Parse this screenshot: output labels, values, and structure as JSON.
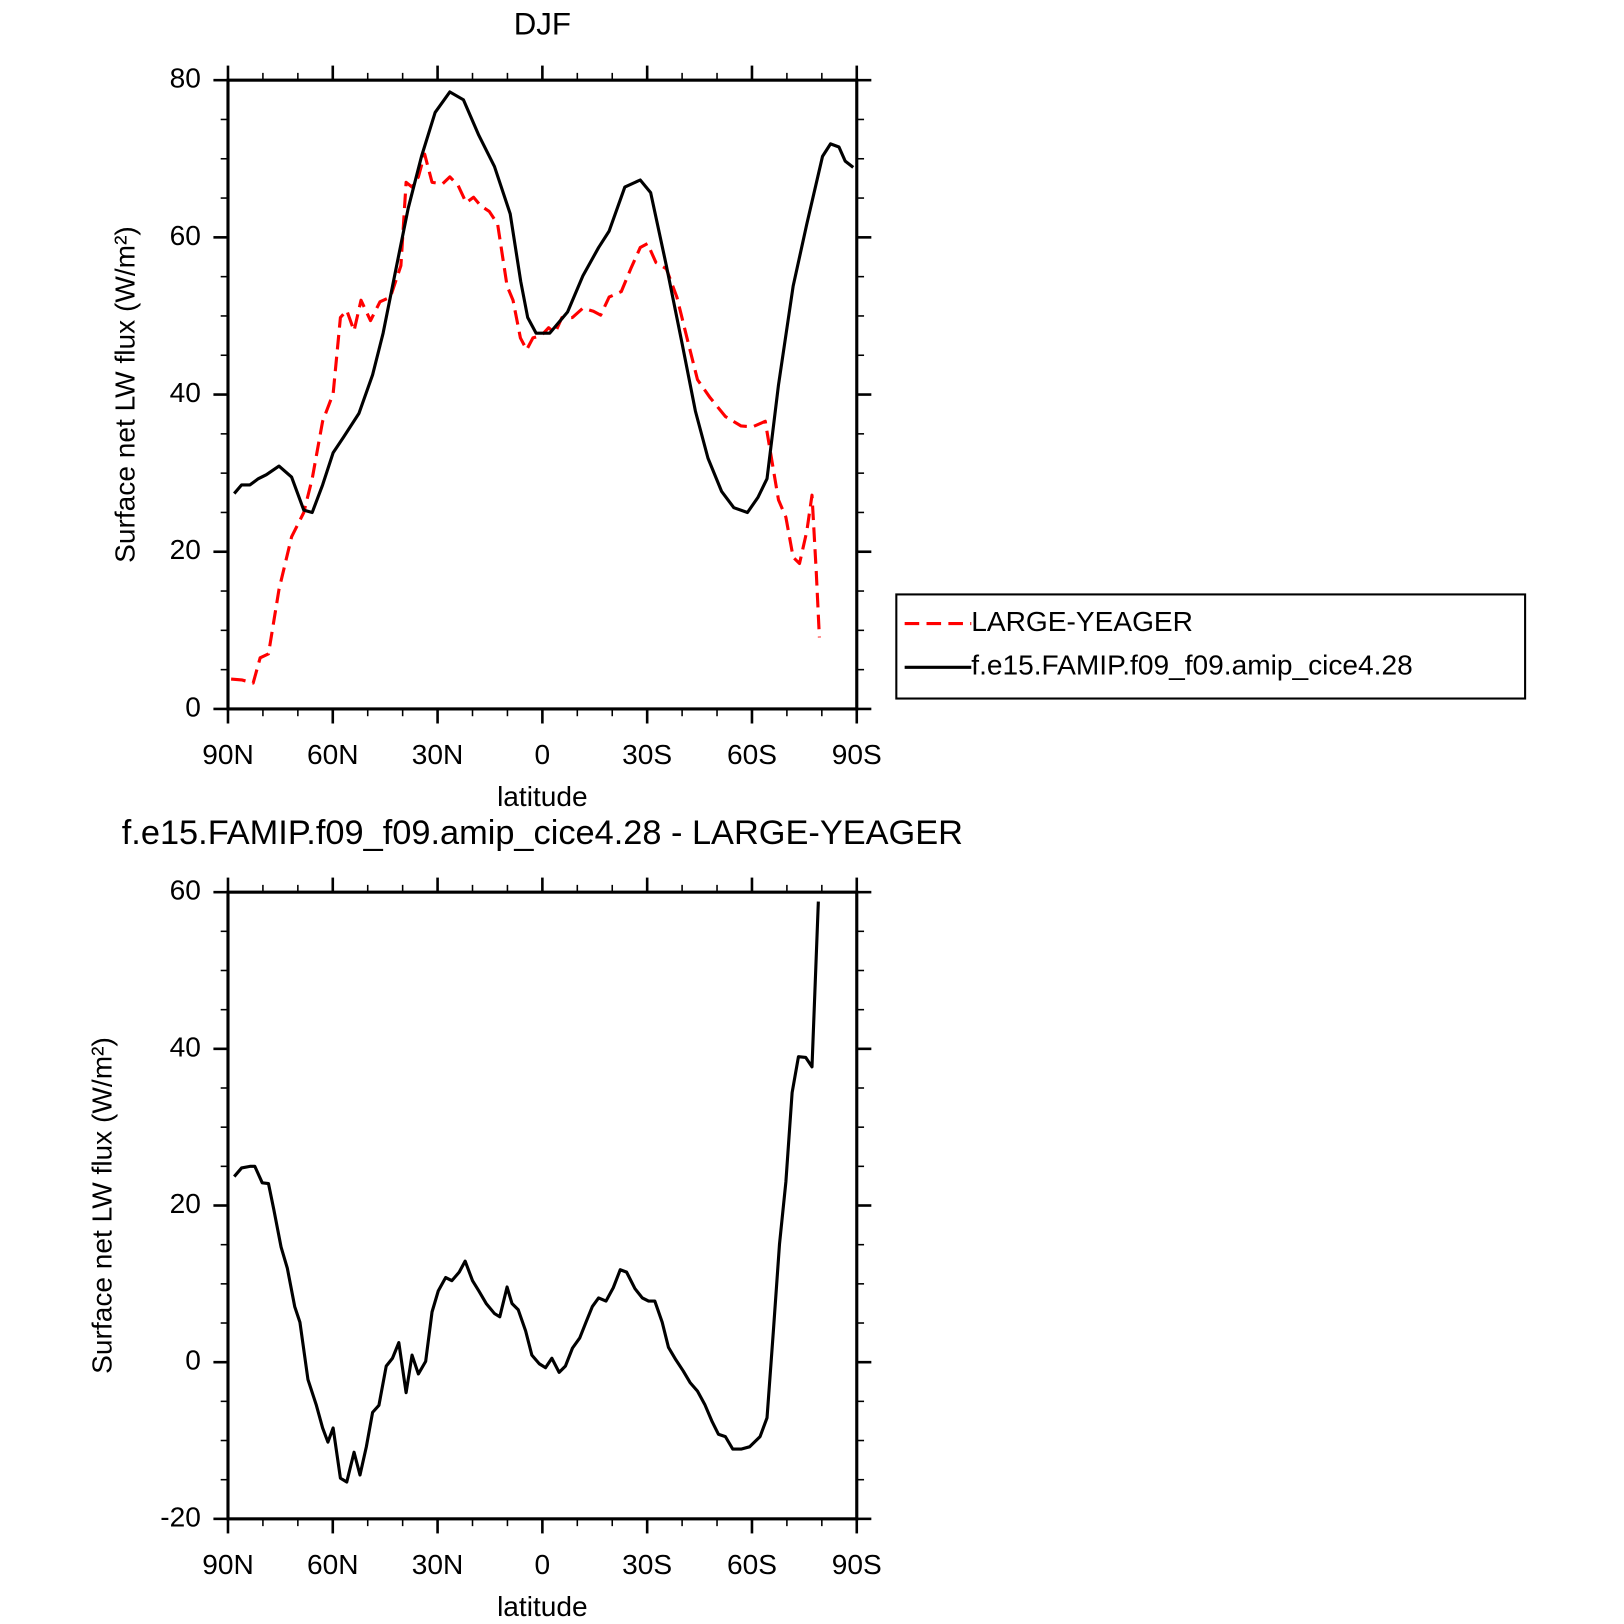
{
  "chart_data": [
    {
      "type": "line",
      "title": "DJF",
      "xlabel": "latitude",
      "ylabel": "Surface net LW flux (W/m²)",
      "xlim": [
        90,
        -90
      ],
      "xticks": [
        {
          "value": 90,
          "label": "90N"
        },
        {
          "value": 60,
          "label": "60N"
        },
        {
          "value": 30,
          "label": "30N"
        },
        0,
        {
          "value": -30,
          "label": "30S"
        },
        {
          "value": -60,
          "label": "60S"
        },
        {
          "value": -90,
          "label": "90S"
        }
      ],
      "ylim": [
        0,
        80
      ],
      "yticks": [
        0,
        20,
        40,
        60,
        80
      ],
      "legend": "right",
      "series": [
        {
          "name": "LARGE-YEAGER",
          "color": "#ff0000",
          "dash": "dashed",
          "x": [
            89.1,
            86.1,
            82.8,
            80.8,
            78.4,
            75.4,
            71.8,
            68.3,
            65.9,
            62.9,
            59.9,
            57.8,
            56.0,
            53.9,
            51.9,
            49.2,
            46.5,
            43.5,
            40.5,
            39.0,
            37.3,
            35.5,
            33.7,
            31.6,
            28.6,
            26.5,
            24.1,
            21.8,
            19.7,
            17.6,
            15.2,
            12.8,
            10.1,
            8.4,
            6.3,
            4.5,
            2.7,
            0.3,
            -1.8,
            -3.6,
            -5.6,
            -8.6,
            -11.6,
            -14.6,
            -16.7,
            -19.1,
            -22.6,
            -25.3,
            -28.0,
            -30.1,
            -32.5,
            -35.5,
            -38.5,
            -41.4,
            -44.4,
            -48.0,
            -52.4,
            -56.9,
            -60.2,
            -63.8,
            -67.6,
            -69.7,
            -71.8,
            -73.6,
            -75.7,
            -77.2,
            -78.4,
            -79.3
          ],
          "values": [
            3.8,
            3.7,
            3.3,
            6.5,
            7,
            15.2,
            21.9,
            25,
            29.3,
            36.6,
            40.1,
            49.8,
            50.7,
            48.1,
            52,
            49.4,
            51.8,
            52.4,
            56.4,
            67,
            66.4,
            67.7,
            70.6,
            67,
            66.8,
            67.7,
            66.6,
            64.4,
            65.1,
            64,
            63.3,
            61.7,
            53.8,
            52,
            47.2,
            45.7,
            47.2,
            47.5,
            48.5,
            47.8,
            49.8,
            49.8,
            51,
            50.6,
            50.1,
            52.4,
            53.1,
            56,
            58.7,
            59.2,
            56.8,
            56,
            52.4,
            47.2,
            41.9,
            39.6,
            37.2,
            36,
            35.9,
            36.6,
            26.6,
            24.4,
            19.3,
            18.5,
            22.6,
            27.2,
            17.4,
            9.1
          ]
        },
        {
          "name": "f.e15.FAMIP.f09_f09.amip_cice4.28",
          "color": "#000000",
          "dash": "solid",
          "x": [
            88.2,
            86.1,
            83.7,
            81.3,
            79.0,
            75.4,
            71.8,
            68.3,
            65.9,
            62.9,
            59.9,
            56.9,
            52.5,
            48.6,
            45.6,
            42.0,
            38.4,
            34.6,
            30.7,
            26.5,
            22.6,
            18.2,
            13.7,
            9.2,
            6.2,
            4.2,
            1.8,
            -2.1,
            -7.2,
            -11.6,
            -16.1,
            -19.1,
            -23.6,
            -28.0,
            -31.0,
            -35.5,
            -40.0,
            -43.8,
            -47.4,
            -51.3,
            -54.8,
            -58.7,
            -61.7,
            -64.3,
            -67.6,
            -71.8,
            -75.7,
            -80.2,
            -82.5,
            -84.9,
            -86.7,
            -89.0
          ],
          "values": [
            27.4,
            28.5,
            28.5,
            29.3,
            29.8,
            30.9,
            29.5,
            25.3,
            25,
            28.5,
            32.6,
            34.6,
            37.6,
            42.5,
            47.8,
            55.8,
            63.7,
            70.3,
            75.9,
            78.5,
            77.5,
            73,
            69,
            63,
            54.4,
            49.8,
            47.8,
            47.8,
            50.5,
            55.1,
            58.7,
            60.8,
            66.4,
            67.3,
            65.7,
            56.4,
            46.5,
            37.9,
            31.9,
            27.7,
            25.6,
            25,
            26.9,
            29.3,
            41.2,
            53.8,
            61.7,
            70.3,
            71.9,
            71.5,
            69.7,
            68.9
          ]
        }
      ]
    },
    {
      "type": "line",
      "title": "f.e15.FAMIP.f09_f09.amip_cice4.28 - LARGE-YEAGER",
      "xlabel": "latitude",
      "ylabel": "Surface net LW flux (W/m²)",
      "xlim": [
        90,
        -90
      ],
      "xticks": [
        {
          "value": 90,
          "label": "90N"
        },
        {
          "value": 60,
          "label": "60N"
        },
        {
          "value": 30,
          "label": "30N"
        },
        0,
        {
          "value": -30,
          "label": "30S"
        },
        {
          "value": -60,
          "label": "60S"
        },
        {
          "value": -90,
          "label": "90S"
        }
      ],
      "ylim": [
        -20,
        60
      ],
      "yticks": [
        -20,
        0,
        20,
        40,
        60
      ],
      "series": [
        {
          "color": "#000000",
          "dash": "solid",
          "x": [
            88.2,
            86.1,
            83.7,
            82.3,
            80.2,
            78.4,
            76.9,
            74.8,
            73.0,
            70.9,
            69.4,
            67.1,
            64.7,
            62.9,
            61.4,
            59.9,
            57.8,
            56.0,
            53.9,
            52.2,
            50.4,
            48.6,
            46.8,
            44.7,
            42.9,
            41.1,
            39.0,
            37.3,
            35.5,
            33.4,
            31.6,
            29.8,
            27.7,
            25.9,
            23.8,
            22.1,
            20.0,
            18.2,
            16.1,
            13.7,
            12.2,
            10.1,
            8.7,
            6.9,
            4.8,
            3.0,
            0.9,
            -0.9,
            -2.7,
            -4.8,
            -6.6,
            -8.6,
            -10.7,
            -12.5,
            -14.3,
            -16.1,
            -18.2,
            -20.3,
            -22.3,
            -24.1,
            -26.5,
            -28.6,
            -30.4,
            -32.2,
            -34.3,
            -36.1,
            -38.2,
            -40.3,
            -42.3,
            -44.4,
            -46.5,
            -48.6,
            -50.4,
            -52.4,
            -54.5,
            -56.9,
            -59.3,
            -62.3,
            -64.3,
            -66.1,
            -67.9,
            -69.7,
            -71.5,
            -73.3,
            -75.4,
            -77.2,
            -79.0
          ],
          "values": [
            23.7,
            24.8,
            25,
            25,
            22.9,
            22.8,
            19.5,
            14.7,
            12,
            7.1,
            5.1,
            -2.2,
            -5.5,
            -8.4,
            -10.2,
            -8.4,
            -14.8,
            -15.3,
            -11.5,
            -14.4,
            -10.8,
            -6.4,
            -5.5,
            -0.5,
            0.5,
            2.5,
            -3.9,
            0.9,
            -1.5,
            0.1,
            6.4,
            9.1,
            10.8,
            10.4,
            11.5,
            12.9,
            10.4,
            9.1,
            7.5,
            6.2,
            5.8,
            9.6,
            7.5,
            6.7,
            4,
            0.9,
            -0.2,
            -0.7,
            0.5,
            -1.3,
            -0.5,
            1.8,
            3.1,
            5.1,
            7.1,
            8.2,
            7.8,
            9.5,
            11.8,
            11.5,
            9.4,
            8.2,
            7.8,
            7.8,
            5.1,
            1.9,
            0.3,
            -1.1,
            -2.6,
            -3.7,
            -5.4,
            -7.6,
            -9.2,
            -9.5,
            -11.1,
            -11.1,
            -10.8,
            -9.5,
            -7.1,
            3.8,
            15.1,
            23,
            34.4,
            39,
            38.9,
            37.7,
            58.8
          ]
        }
      ]
    }
  ]
}
